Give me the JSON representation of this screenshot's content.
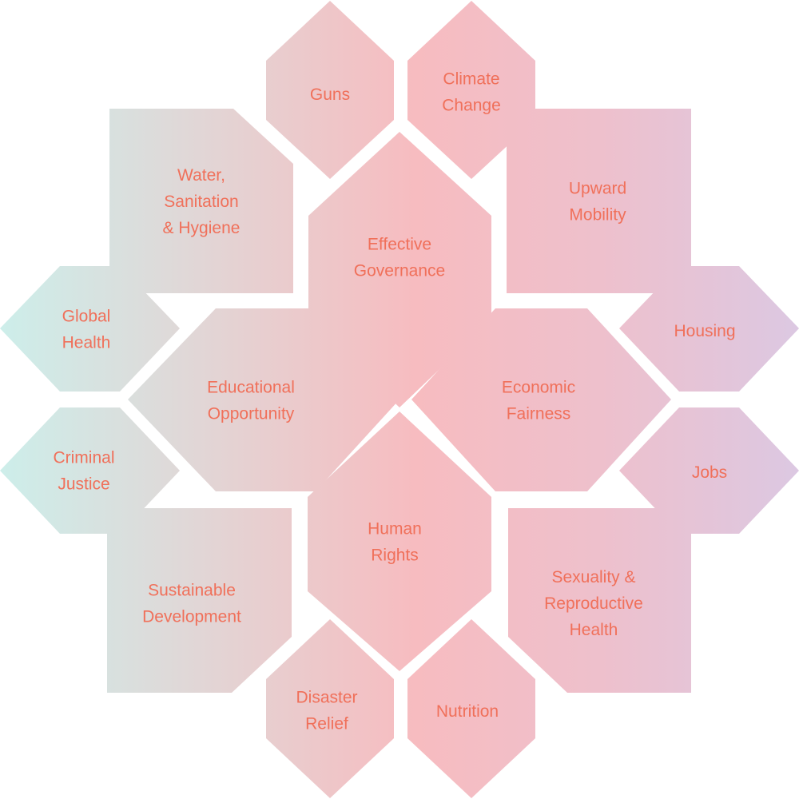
{
  "tiles": [
    {
      "id": "guns",
      "lines": [
        "Guns"
      ]
    },
    {
      "id": "climate-change",
      "lines": [
        "Climate",
        "Change"
      ]
    },
    {
      "id": "water-sanitation-hygiene",
      "lines": [
        "Water,",
        "Sanitation",
        "& Hygiene"
      ]
    },
    {
      "id": "upward-mobility",
      "lines": [
        "Upward",
        "Mobility"
      ]
    },
    {
      "id": "effective-governance",
      "lines": [
        "Effective",
        "Governance"
      ]
    },
    {
      "id": "global-health",
      "lines": [
        "Global",
        "Health"
      ]
    },
    {
      "id": "housing",
      "lines": [
        "Housing"
      ]
    },
    {
      "id": "educational-opportunity",
      "lines": [
        "Educational",
        "Opportunity"
      ]
    },
    {
      "id": "economic-fairness",
      "lines": [
        "Economic",
        "Fairness"
      ]
    },
    {
      "id": "criminal-justice",
      "lines": [
        "Criminal",
        "Justice"
      ]
    },
    {
      "id": "jobs",
      "lines": [
        "Jobs"
      ]
    },
    {
      "id": "human-rights",
      "lines": [
        "Human",
        "Rights"
      ]
    },
    {
      "id": "sustainable-development",
      "lines": [
        "Sustainable",
        "Development"
      ]
    },
    {
      "id": "sexuality-reproductive-health",
      "lines": [
        "Sexuality &",
        "Reproductive",
        "Health"
      ]
    },
    {
      "id": "disaster-relief",
      "lines": [
        "Disaster",
        "Relief"
      ]
    },
    {
      "id": "nutrition",
      "lines": [
        "Nutrition"
      ]
    }
  ],
  "colors": {
    "text": "#f0705a",
    "teal": "#cdeeea",
    "pink": "#f7bcc0",
    "lavender": "#dcc8e2",
    "rose": "#eec0cc"
  }
}
